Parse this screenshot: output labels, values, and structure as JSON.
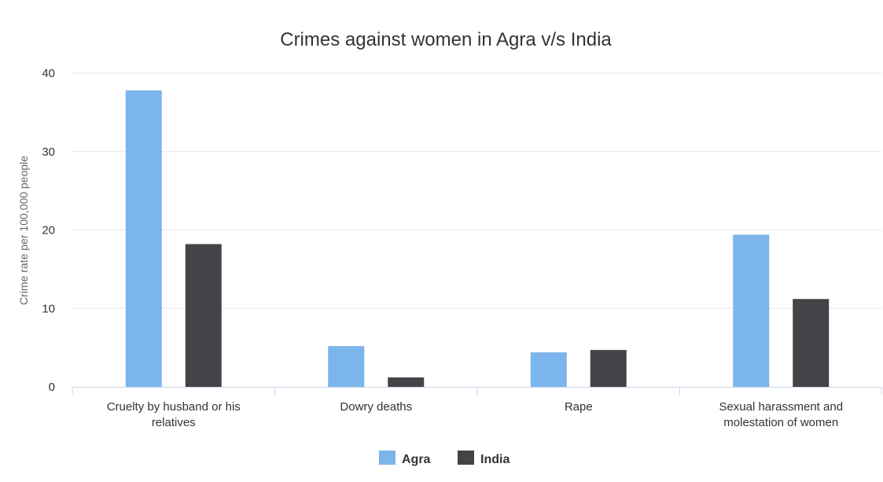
{
  "chart_data": {
    "type": "bar",
    "title": "Crimes against women in Agra v/s India",
    "xlabel": "",
    "ylabel": "Crime rate per 100,000 people",
    "ylim": [
      0,
      40
    ],
    "yticks": [
      "0",
      "10",
      "20",
      "30",
      "40"
    ],
    "grid": true,
    "legend_position": "bottom",
    "categories": [
      [
        "Cruelty by husband or his",
        "relatives"
      ],
      [
        "Dowry deaths"
      ],
      [
        "Rape"
      ],
      [
        "Sexual harassment and",
        "molestation of women"
      ]
    ],
    "series": [
      {
        "name": "Agra",
        "color": "#7cb5ec",
        "values": [
          37.8,
          5.2,
          4.4,
          19.4
        ]
      },
      {
        "name": "India",
        "color": "#434348",
        "values": [
          18.2,
          1.2,
          4.7,
          11.2
        ]
      }
    ]
  }
}
